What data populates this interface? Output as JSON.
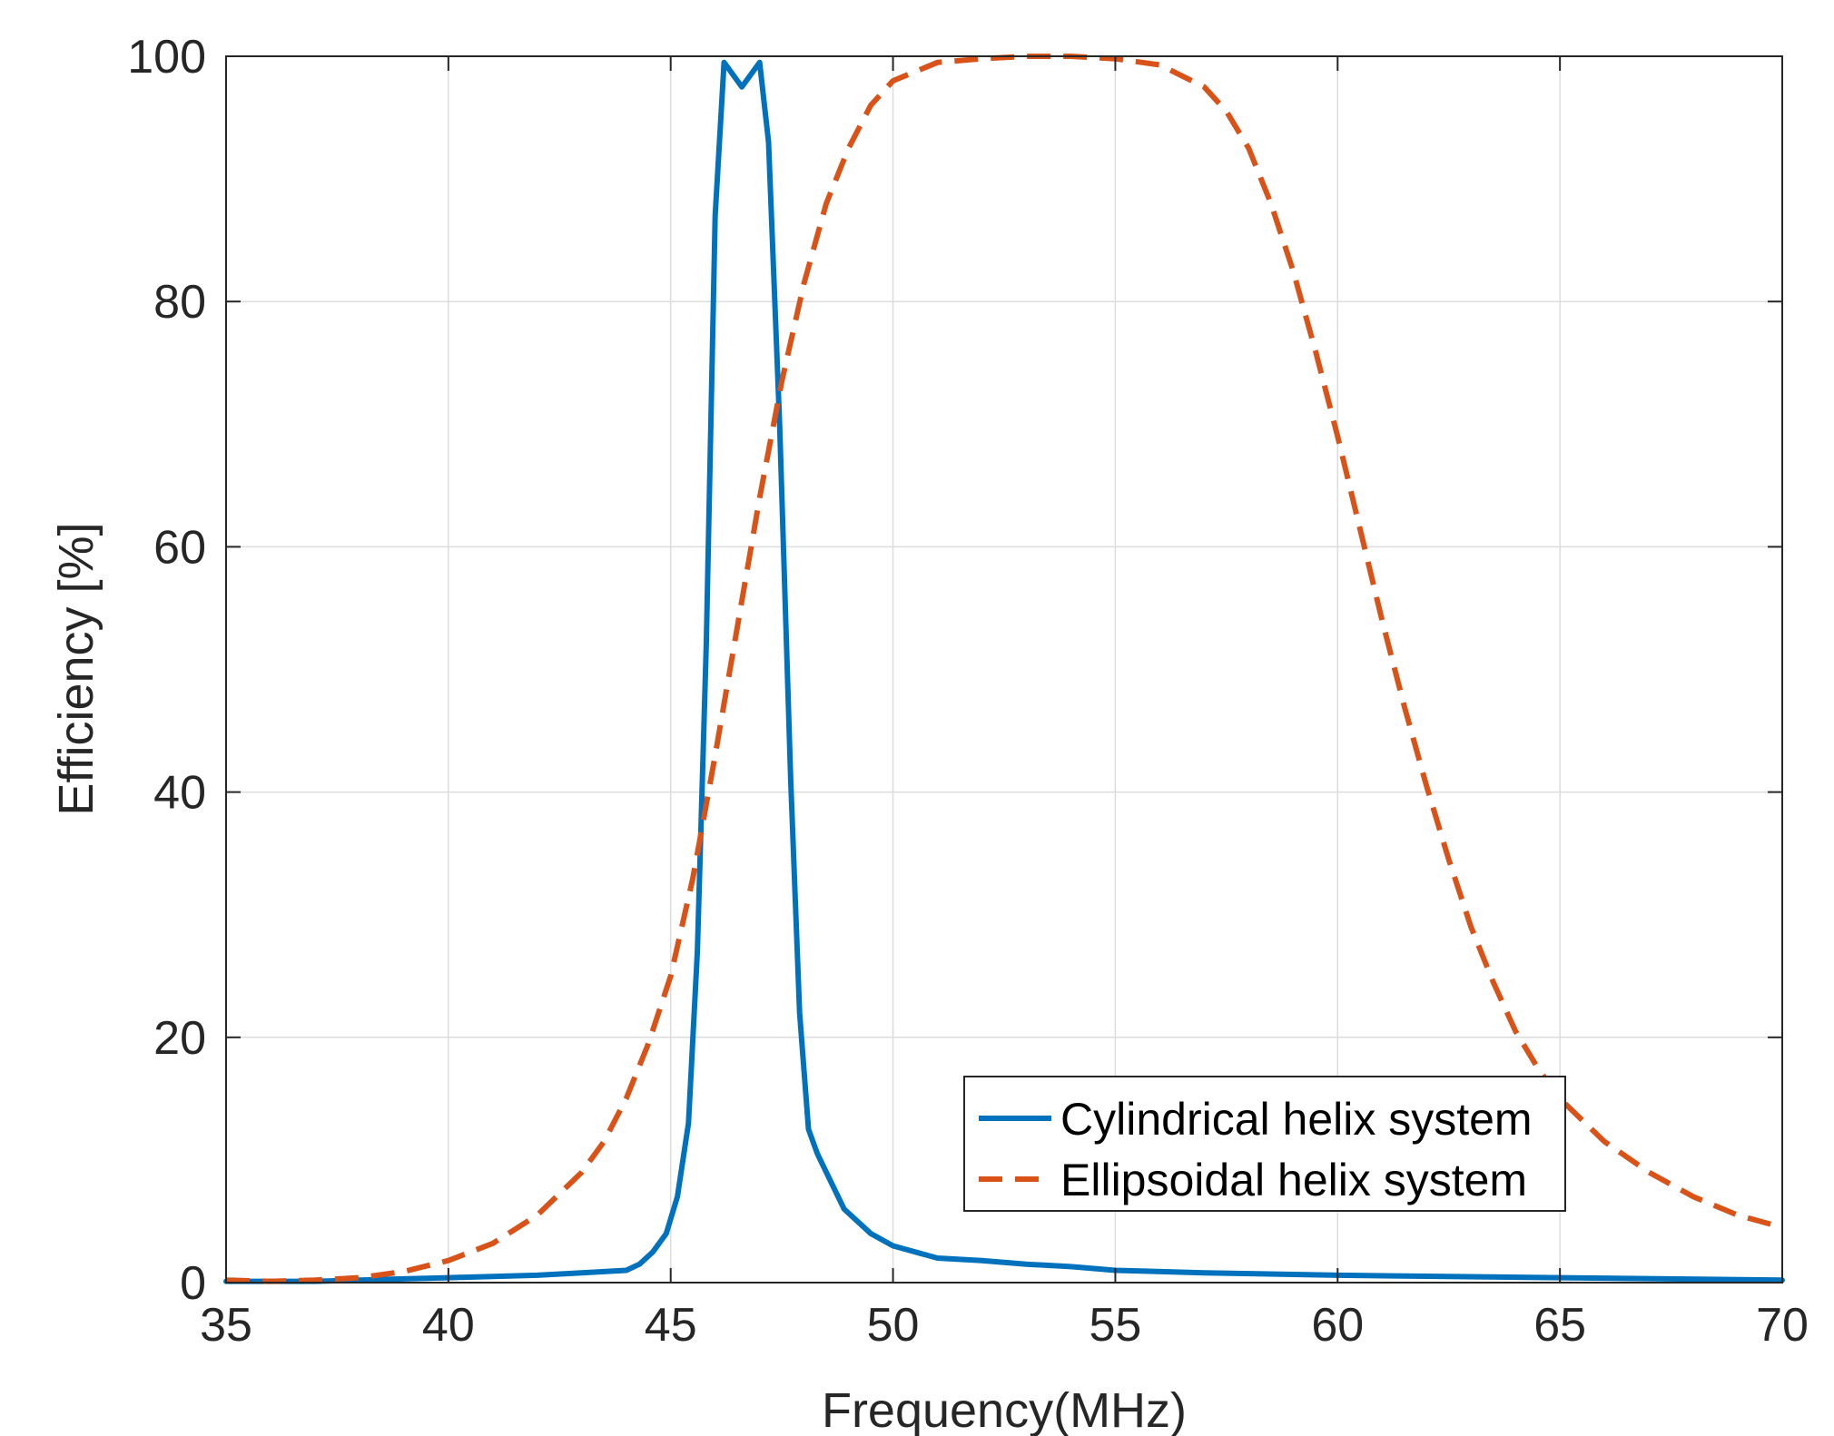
{
  "chart_data": {
    "type": "line",
    "xlabel": "Frequency(MHz)",
    "ylabel": "Efficiency [%]",
    "xlim": [
      35,
      70
    ],
    "ylim": [
      0,
      100
    ],
    "xticks": [
      35,
      40,
      45,
      50,
      55,
      60,
      65,
      70
    ],
    "yticks": [
      0,
      20,
      40,
      60,
      80,
      100
    ],
    "grid": true,
    "legend_position": "lower-right",
    "series": [
      {
        "name": "Cylindrical helix system",
        "style": "solid",
        "color": "#0072BD",
        "x": [
          35,
          36,
          37,
          38,
          39,
          40,
          41,
          42,
          43,
          44,
          44.3,
          44.6,
          44.9,
          45.15,
          45.4,
          45.6,
          45.8,
          46.0,
          46.2,
          46.4,
          46.6,
          46.8,
          47.0,
          47.2,
          47.45,
          47.7,
          47.9,
          48.1,
          48.3,
          48.5,
          48.7,
          48.9,
          49.5,
          50,
          51,
          52,
          53,
          54,
          55,
          57,
          60,
          65,
          70
        ],
        "y": [
          0.1,
          0.1,
          0.1,
          0.2,
          0.3,
          0.4,
          0.5,
          0.6,
          0.8,
          1.0,
          1.5,
          2.5,
          4.0,
          7.0,
          13.0,
          27.0,
          52.0,
          87.0,
          99.5,
          98.5,
          97.5,
          98.5,
          99.5,
          93.0,
          70.0,
          41.0,
          22.0,
          12.5,
          10.5,
          9.0,
          7.5,
          6.0,
          4.0,
          3.0,
          2.0,
          1.8,
          1.5,
          1.3,
          1.0,
          0.8,
          0.6,
          0.4,
          0.2
        ],
        "y_overrides": {}
      },
      {
        "name": "Ellipsoidal helix system",
        "style": "dashed",
        "color": "#D95319",
        "x": [
          35,
          36,
          37,
          38,
          39,
          40,
          41,
          42,
          43,
          43.5,
          44,
          44.5,
          45,
          45.5,
          46,
          46.5,
          47,
          47.5,
          48,
          48.5,
          49,
          49.5,
          50,
          51,
          52,
          53,
          54,
          55,
          56,
          57,
          57.5,
          58,
          58.5,
          59,
          59.5,
          60,
          60.5,
          61,
          61.5,
          62,
          62.5,
          63,
          63.5,
          64,
          64.5,
          65,
          66,
          67,
          68,
          69,
          70
        ],
        "y": [
          0.2,
          0.1,
          0.2,
          0.4,
          0.9,
          1.8,
          3.2,
          5.5,
          9.0,
          11.5,
          15.0,
          19.5,
          25.0,
          33.0,
          43.0,
          53.5,
          64.0,
          73.5,
          81.5,
          88.0,
          92.5,
          96.0,
          98.0,
          99.5,
          99.8,
          100.0,
          100.0,
          99.8,
          99.3,
          97.5,
          95.5,
          92.5,
          88.0,
          82.5,
          76.0,
          69.0,
          61.5,
          54.0,
          47.0,
          40.5,
          34.5,
          29.0,
          24.5,
          20.5,
          17.5,
          15.0,
          11.5,
          9.0,
          7.0,
          5.5,
          4.5
        ]
      }
    ]
  }
}
